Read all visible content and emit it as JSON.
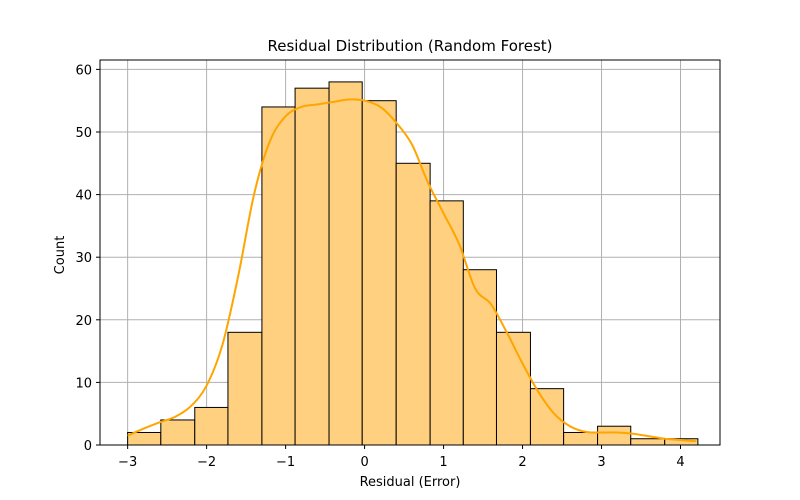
{
  "chart_data": {
    "type": "bar",
    "title": "Residual Distribution (Random Forest)",
    "xlabel": "Residual (Error)",
    "ylabel": "Count",
    "xlim": [
      -3.35,
      4.5
    ],
    "ylim": [
      0,
      61.5
    ],
    "grid": true,
    "x_ticks": [
      -3,
      -2,
      -1,
      0,
      1,
      2,
      3,
      4
    ],
    "x_tick_labels": [
      "−3",
      "−2",
      "−1",
      "0",
      "1",
      "2",
      "3",
      "4"
    ],
    "y_ticks": [
      0,
      10,
      20,
      30,
      40,
      50,
      60
    ],
    "y_tick_labels": [
      "0",
      "10",
      "20",
      "30",
      "40",
      "50",
      "60"
    ],
    "bins": [
      {
        "x0": -3.0,
        "x1": -2.58,
        "count": 2
      },
      {
        "x0": -2.58,
        "x1": -2.15,
        "count": 4
      },
      {
        "x0": -2.15,
        "x1": -1.73,
        "count": 6
      },
      {
        "x0": -1.73,
        "x1": -1.3,
        "count": 18
      },
      {
        "x0": -1.3,
        "x1": -0.88,
        "count": 54
      },
      {
        "x0": -0.88,
        "x1": -0.45,
        "count": 57
      },
      {
        "x0": -0.45,
        "x1": -0.03,
        "count": 58
      },
      {
        "x0": -0.03,
        "x1": 0.4,
        "count": 55
      },
      {
        "x0": 0.4,
        "x1": 0.83,
        "count": 45
      },
      {
        "x0": 0.83,
        "x1": 1.25,
        "count": 39
      },
      {
        "x0": 1.25,
        "x1": 1.67,
        "count": 28
      },
      {
        "x0": 1.67,
        "x1": 2.1,
        "count": 18
      },
      {
        "x0": 2.1,
        "x1": 2.52,
        "count": 9
      },
      {
        "x0": 2.52,
        "x1": 2.95,
        "count": 2
      },
      {
        "x0": 2.95,
        "x1": 3.37,
        "count": 3
      },
      {
        "x0": 3.37,
        "x1": 3.8,
        "count": 1
      },
      {
        "x0": 3.8,
        "x1": 4.22,
        "count": 1
      }
    ],
    "kde": {
      "x": [
        -3.0,
        -2.8,
        -2.6,
        -2.4,
        -2.2,
        -2.0,
        -1.8,
        -1.6,
        -1.4,
        -1.2,
        -1.0,
        -0.8,
        -0.6,
        -0.4,
        -0.2,
        0.0,
        0.2,
        0.4,
        0.6,
        0.8,
        1.0,
        1.2,
        1.4,
        1.6,
        1.8,
        2.0,
        2.2,
        2.4,
        2.6,
        2.8,
        3.0,
        3.2,
        3.4,
        3.6,
        3.8,
        4.0,
        4.2
      ],
      "y": [
        1.5,
        2.6,
        3.6,
        4.5,
        6.2,
        9.5,
        16.0,
        27.0,
        40.0,
        48.5,
        52.5,
        54.0,
        54.4,
        54.8,
        55.2,
        55.0,
        54.0,
        51.5,
        48.0,
        42.0,
        37.0,
        32.0,
        25.0,
        22.5,
        18.0,
        13.0,
        8.5,
        5.0,
        3.0,
        2.1,
        2.0,
        2.0,
        1.8,
        1.4,
        1.0,
        0.8,
        0.6
      ]
    },
    "colors": {
      "bar_fill": "#ffd07f",
      "bar_edge": "#000000",
      "kde_line": "#ffa500",
      "grid": "#b0b0b0",
      "axes": "#000000"
    }
  }
}
